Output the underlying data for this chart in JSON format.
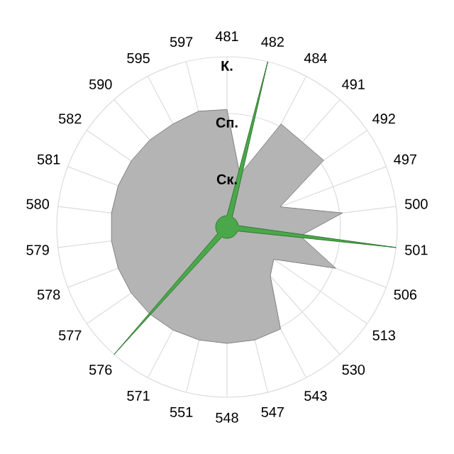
{
  "chart_data": {
    "type": "radar",
    "categories": [
      "481",
      "482",
      "484",
      "491",
      "492",
      "497",
      "500",
      "501",
      "506",
      "513",
      "530",
      "543",
      "547",
      "548",
      "551",
      "571",
      "576",
      "577",
      "578",
      "579",
      "580",
      "581",
      "582",
      "590",
      "595",
      "597"
    ],
    "series": [
      {
        "color": "#b4b4b4",
        "values": [
          2.07,
          0.95,
          2.05,
          2.0,
          2.07,
          1.0,
          2.05,
          1.3,
          2.05,
          1.0,
          1.15,
          2.03,
          2.05,
          2.05,
          2.05,
          2.05,
          2.05,
          2.05,
          2.05,
          2.05,
          2.05,
          2.05,
          2.05,
          2.05,
          2.05,
          2.1
        ]
      },
      {
        "color": "#4aa84a",
        "values": [
          0.2,
          3,
          0.2,
          0.2,
          0.2,
          0.2,
          0.2,
          3,
          0.2,
          0.2,
          0.2,
          0.2,
          0.2,
          0.2,
          0.2,
          0.2,
          3,
          0.2,
          0.2,
          0.2,
          0.2,
          0.2,
          0.2,
          0.2,
          0.2,
          0.2
        ]
      }
    ],
    "ylim": [
      0,
      3
    ],
    "yticks": [
      {
        "value": 1,
        "label": "Ск."
      },
      {
        "value": 2,
        "label": "Сп."
      },
      {
        "value": 3,
        "label": "К."
      }
    ],
    "grid": true
  }
}
